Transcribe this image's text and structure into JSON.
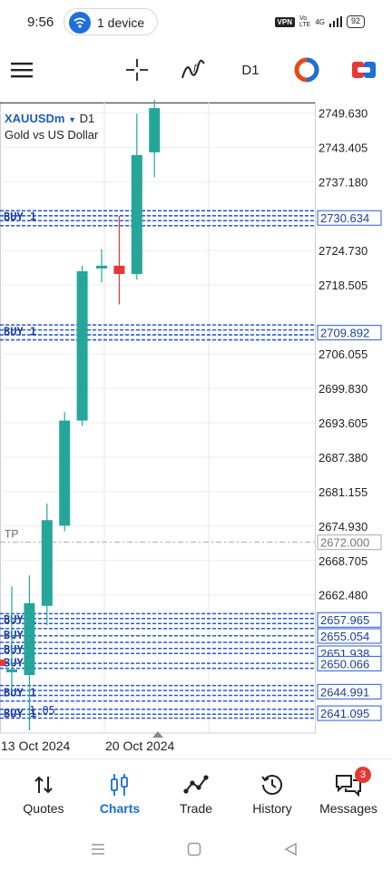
{
  "status_bar": {
    "time": "9:56",
    "device_label": "1 device",
    "vpn": "VPN",
    "network": "4G",
    "battery": "92"
  },
  "toolbar": {
    "timeframe": "D1"
  },
  "chart": {
    "symbol": "XAUUSDm",
    "timeframe": "D1",
    "description": "Gold vs US Dollar",
    "tp_label": "TP",
    "buy_label": "BUY 1",
    "buy_label_short": "BUY",
    "lot_label": "1.05"
  },
  "chart_data": {
    "type": "candlestick",
    "y_ticks": [
      "2749.630",
      "2743.405",
      "2737.180",
      "2724.730",
      "2718.505",
      "2706.055",
      "2699.830",
      "2693.605",
      "2687.380",
      "2681.155",
      "2674.930",
      "2668.705",
      "2662.480"
    ],
    "x_ticks": [
      "13 Oct 2024",
      "20 Oct 2024"
    ],
    "price_tags": [
      {
        "price": 2730.634,
        "label": "2730.634"
      },
      {
        "price": 2709.892,
        "label": "2709.892"
      },
      {
        "price": 2672.0,
        "label": "2672.000"
      },
      {
        "price": 2657.965,
        "label": "2657.965"
      },
      {
        "price": 2655.054,
        "label": "2655.054"
      },
      {
        "price": 2651.938,
        "label": "2651.938"
      },
      {
        "price": 2650.066,
        "label": "2650.066"
      },
      {
        "price": 2644.991,
        "label": "2644.991"
      },
      {
        "price": 2641.095,
        "label": "2641.095"
      }
    ],
    "candles": [
      {
        "o": 2648.5,
        "h": 2664.0,
        "l": 2645.0,
        "c": 2649.0
      },
      {
        "o": 2648.0,
        "h": 2666.0,
        "l": 2638.0,
        "c": 2661.0
      },
      {
        "o": 2660.5,
        "h": 2679.0,
        "l": 2657.0,
        "c": 2676.0
      },
      {
        "o": 2675.0,
        "h": 2695.5,
        "l": 2674.0,
        "c": 2694.0
      },
      {
        "o": 2694.0,
        "h": 2722.0,
        "l": 2693.0,
        "c": 2721.0
      },
      {
        "o": 2721.5,
        "h": 2725.0,
        "l": 2719.0,
        "c": 2722.0
      },
      {
        "o": 2722.0,
        "h": 2731.0,
        "l": 2715.0,
        "c": 2720.5
      },
      {
        "o": 2720.5,
        "h": 2749.5,
        "l": 2719.5,
        "c": 2742.0
      },
      {
        "o": 2742.5,
        "h": 2752.0,
        "l": 2738.0,
        "c": 2750.5
      }
    ],
    "colors": {
      "bull": "#26a69a",
      "bear": "#e53935",
      "order_line": "#2a5bd7",
      "tp_line": "#aaaaaa"
    }
  },
  "bottom_nav": {
    "items": [
      {
        "label": "Quotes"
      },
      {
        "label": "Charts"
      },
      {
        "label": "Trade"
      },
      {
        "label": "History"
      },
      {
        "label": "Messages"
      }
    ],
    "messages_badge": "3"
  }
}
